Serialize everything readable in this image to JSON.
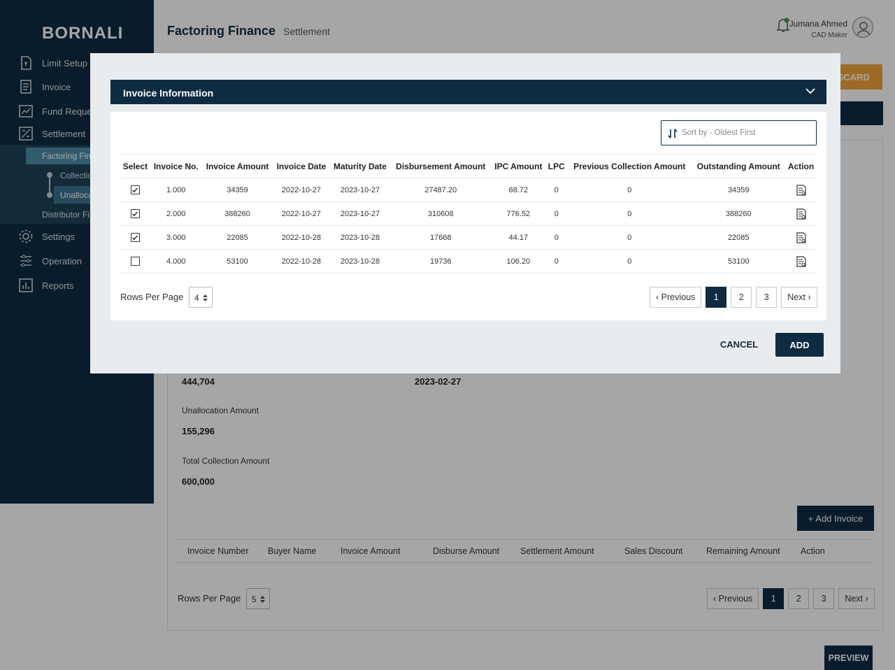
{
  "sidebar": {
    "brand": "BORNALI",
    "items": [
      {
        "label": "Limit Setup",
        "icon": "limit-setup-icon"
      },
      {
        "label": "Invoice",
        "icon": "invoice-icon"
      },
      {
        "label": "Fund Reques",
        "icon": "fund-request-icon"
      },
      {
        "label": "Settlement",
        "icon": "settlement-icon"
      },
      {
        "label": "Settings",
        "icon": "settings-icon"
      },
      {
        "label": "Operation",
        "icon": "operation-icon"
      },
      {
        "label": "Reports",
        "icon": "reports-icon"
      }
    ],
    "sub_item": "Factoring Fin",
    "sub_children": [
      "Collectio",
      "Unalloca"
    ],
    "distributor": "Distributor Fi"
  },
  "header": {
    "title": "Factoring Finance",
    "subtitle": "Settlement",
    "user_name": "Jumana Ahmed",
    "user_role": "CAD Maker",
    "discard_label": "ISCARD"
  },
  "background": {
    "first_value": "444,704",
    "date_value": "2023-02-27",
    "unallocation_label": "Unallocation Amount",
    "unallocation_value": "155,296",
    "total_collection_label": "Total Collection Amount",
    "total_collection_value": "600,000",
    "add_invoice_label": "+ Add Invoice",
    "table_headers": [
      "Invoice Number",
      "Buyer Name",
      "Invoice Amount",
      "Disburse Amount",
      "Settlement Amount",
      "Sales Discount",
      "Remaining Amount",
      "Action"
    ],
    "rows_per_page_label": "Rows Per Page",
    "rows_per_page_value": "5",
    "pager": {
      "previous": "Previous",
      "pages": [
        "1",
        "2",
        "3"
      ],
      "next": "Next"
    },
    "preview_label": "PREVIEW"
  },
  "modal": {
    "title": "Invoice Information",
    "sort_placeholder": "Sort by - Oldest First",
    "columns": [
      "Select",
      "Invoice No.",
      "Invoice Amount",
      "Invoice Date",
      "Maturity Date",
      "Disbursement Amount",
      "IPC Amount",
      "LPC",
      "Previous Collection Amount",
      "Outstanding Amount",
      "Action"
    ],
    "rows": [
      {
        "checked": true,
        "invoice_no": "1.000",
        "invoice_amount": "34359",
        "invoice_date": "2022-10-27",
        "maturity_date": "2023-10-27",
        "disbursement": "27487.20",
        "ipc": "68.72",
        "lpc": "0",
        "prev_collection": "0",
        "outstanding": "34359"
      },
      {
        "checked": true,
        "invoice_no": "2.000",
        "invoice_amount": "388260",
        "invoice_date": "2022-10-27",
        "maturity_date": "2023-10-27",
        "disbursement": "310608",
        "ipc": "776.52",
        "lpc": "0",
        "prev_collection": "0",
        "outstanding": "388260"
      },
      {
        "checked": true,
        "invoice_no": "3.000",
        "invoice_amount": "22085",
        "invoice_date": "2022-10-28",
        "maturity_date": "2023-10-28",
        "disbursement": "17668",
        "ipc": "44.17",
        "lpc": "0",
        "prev_collection": "0",
        "outstanding": "22085"
      },
      {
        "checked": false,
        "invoice_no": "4.000",
        "invoice_amount": "53100",
        "invoice_date": "2022-10-28",
        "maturity_date": "2023-10-28",
        "disbursement": "19736",
        "ipc": "106.20",
        "lpc": "0",
        "prev_collection": "0",
        "outstanding": "53100"
      }
    ],
    "rows_per_page_label": "Rows Per Page",
    "rows_per_page_value": "4",
    "pager": {
      "previous": "Previous",
      "pages": [
        "1",
        "2",
        "3"
      ],
      "next": "Next"
    },
    "cancel_label": "CANCEL",
    "add_label": "ADD"
  },
  "colors": {
    "primary": "#0d2c42",
    "accent": "#f1a43b",
    "active_nav": "#4c8fa8"
  }
}
